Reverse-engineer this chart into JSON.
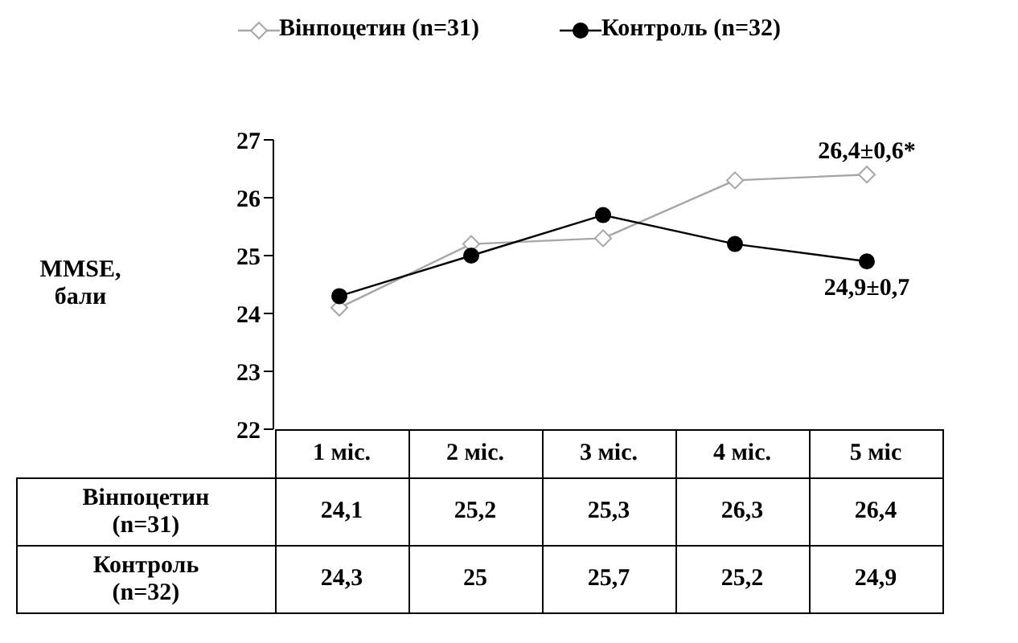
{
  "chart_data": {
    "type": "line",
    "categories": [
      "1 міс.",
      "2 міс.",
      "3 міс.",
      "4 міс.",
      "5 міс"
    ],
    "ylabel": "MMSE, бали",
    "ylim": [
      22,
      27
    ],
    "yticks": [
      22,
      23,
      24,
      25,
      26,
      27
    ],
    "legend": "top",
    "series": [
      {
        "name": "Вінпоцетин (n=31)",
        "color": "#a6a6a6",
        "marker": "diamond",
        "values": [
          24.1,
          25.2,
          25.3,
          26.3,
          26.4
        ],
        "value_labels": [
          "24,1",
          "25,2",
          "25,3",
          "26,3",
          "26,4"
        ]
      },
      {
        "name": "Контроль (n=32)",
        "color": "#000000",
        "marker": "circle",
        "values": [
          24.3,
          25,
          25.7,
          25.2,
          24.9
        ],
        "value_labels": [
          "24,3",
          "25",
          "25,7",
          "25,2",
          "24,9"
        ]
      }
    ],
    "annotations": [
      {
        "text": "26,4±0,6*",
        "x": "5 міс",
        "y": 26.4
      },
      {
        "text": "24,9±0,7",
        "x": "5 міс",
        "y": 24.9
      }
    ]
  }
}
